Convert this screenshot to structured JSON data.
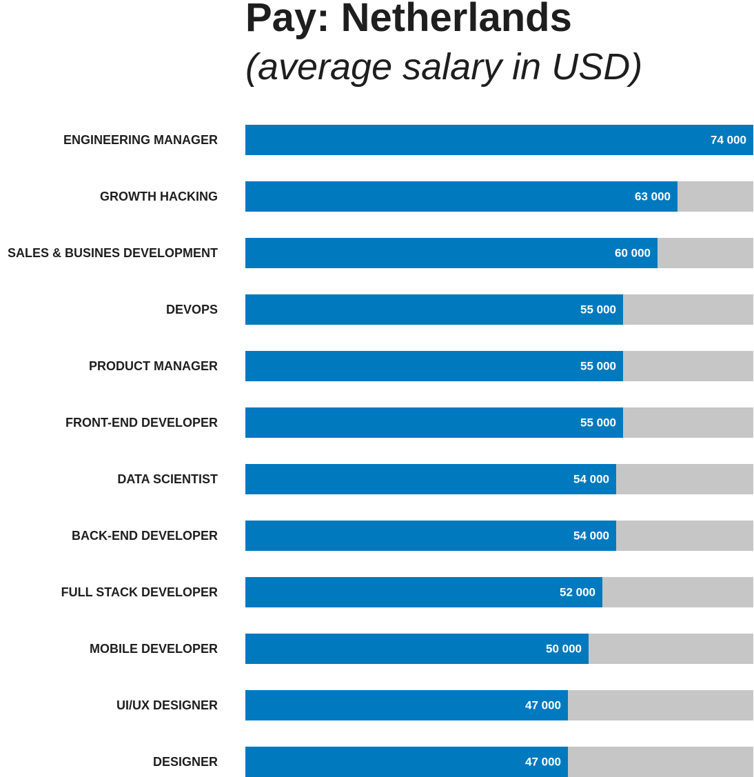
{
  "chart_data": {
    "type": "bar",
    "orientation": "horizontal",
    "title": "Pay: Netherlands",
    "subtitle": "(average salary in USD)",
    "categories": [
      "ENGINEERING MANAGER",
      "GROWTH HACKING",
      "SALES & BUSINES DEVELOPMENT",
      "DEVOPS",
      "PRODUCT MANAGER",
      "FRONT-END DEVELOPER",
      "DATA SCIENTIST",
      "BACK-END DEVELOPER",
      "FULL STACK DEVELOPER",
      "MOBILE DEVELOPER",
      "UI/UX DESIGNER",
      "DESIGNER"
    ],
    "values": [
      74000,
      63000,
      60000,
      55000,
      55000,
      55000,
      54000,
      54000,
      52000,
      50000,
      47000,
      47000
    ],
    "value_labels": [
      "74 000",
      "63 000",
      "60 000",
      "55 000",
      "55 000",
      "55 000",
      "54 000",
      "54 000",
      "52 000",
      "50 000",
      "47 000",
      "47 000"
    ],
    "xlim": [
      0,
      74000
    ],
    "xlabel": "",
    "ylabel": "",
    "grid": false,
    "legend": "none",
    "colors": {
      "bar": "#0079be",
      "track": "#c6c6c6",
      "label_text": "#1e1e1e",
      "value_text": "#ffffff"
    }
  }
}
